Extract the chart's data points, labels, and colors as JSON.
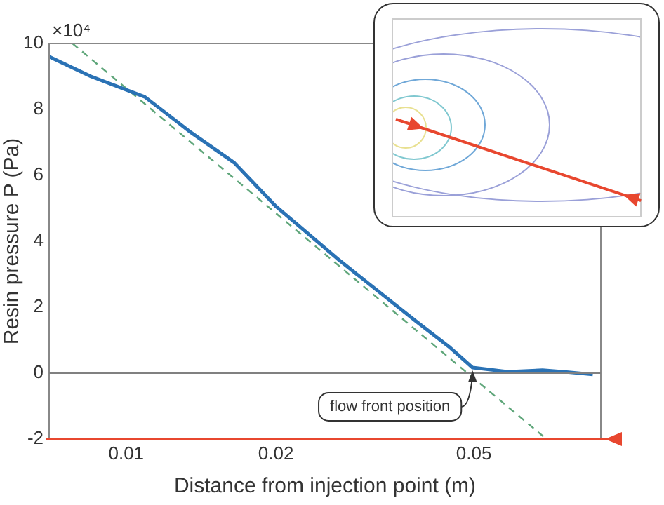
{
  "chart_data": {
    "type": "line",
    "xlabel": "Distance from injection point (m)",
    "ylabel": "Resin pressure P (Pa)",
    "log": "x",
    "xlim": [
      0.007,
      0.09
    ],
    "xticks": [
      0.01,
      0.02,
      0.05
    ],
    "ylim": [
      -2,
      10
    ],
    "yticks": [
      -2,
      0,
      2,
      4,
      6,
      8,
      10
    ],
    "marker": "none",
    "legend": false,
    "series": [
      {
        "type": "line",
        "color": "#2a72b5",
        "x": [
          0.007,
          0.0085,
          0.0109,
          0.0135,
          0.0165,
          0.02,
          0.0265,
          0.0307,
          0.0383,
          0.0445,
          0.0497,
          0.0588,
          0.0687,
          0.0762,
          0.0867
        ],
        "values": [
          9.6,
          9.0,
          8.38,
          7.3,
          6.38,
          5.06,
          3.49,
          2.72,
          1.57,
          0.81,
          0.17,
          0.04,
          0.09,
          0.04,
          -0.04
        ]
      },
      {
        "type": "line",
        "color": "#5fa67a",
        "line_style": "dashed",
        "x": [
          0.0078,
          0.07
        ],
        "values": [
          10,
          -2
        ]
      }
    ],
    "ref_lines": [
      {
        "axis": "y",
        "value": 0,
        "color": "#808080"
      }
    ],
    "annotations": [
      "×10⁴",
      {
        "text": "flow front position",
        "x": 0.0497,
        "y": 0.17
      }
    ]
  }
}
